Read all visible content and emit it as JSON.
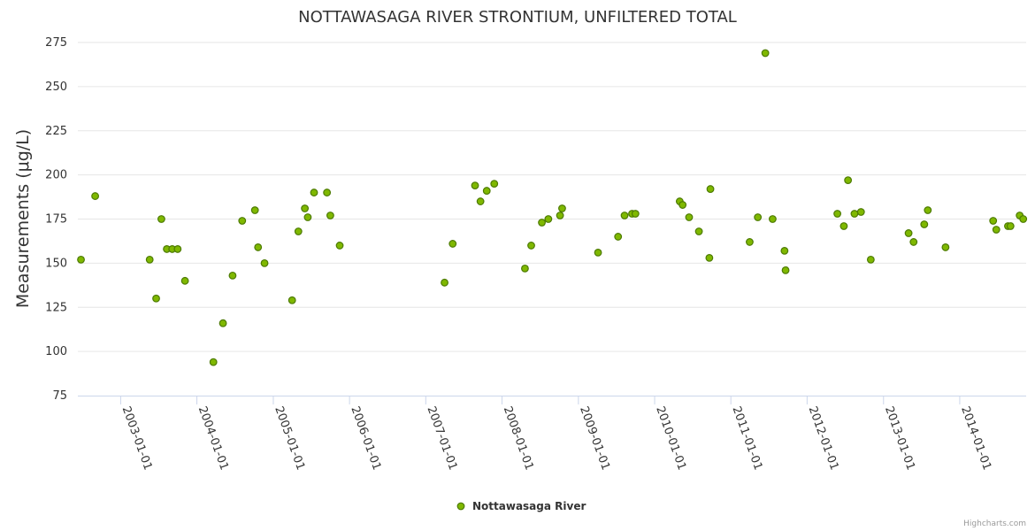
{
  "chart_data": {
    "type": "scatter",
    "title": "NOTTAWASAGA RIVER STRONTIUM, UNFILTERED TOTAL",
    "ylabel": "Measurements (μg/L)",
    "xlabel": "",
    "xlim": [
      "2002-06-10",
      "2014-11-15"
    ],
    "ylim": [
      75,
      275
    ],
    "yticks": [
      75,
      100,
      125,
      150,
      175,
      200,
      225,
      250,
      275
    ],
    "xticks": [
      "2003-01-01",
      "2004-01-01",
      "2005-01-01",
      "2006-01-01",
      "2007-01-01",
      "2008-01-01",
      "2009-01-01",
      "2010-01-01",
      "2011-01-01",
      "2012-01-01",
      "2013-01-01",
      "2014-01-01"
    ],
    "grid": true,
    "legend_position": "bottom",
    "colors": {
      "marker_fill": "#7fb800",
      "marker_stroke": "#4c7a00"
    },
    "series": [
      {
        "name": "Nottawasaga River",
        "points": [
          [
            "2002-06-25",
            152
          ],
          [
            "2002-09-01",
            188
          ],
          [
            "2003-05-20",
            152
          ],
          [
            "2003-06-20",
            130
          ],
          [
            "2003-07-15",
            175
          ],
          [
            "2003-08-10",
            158
          ],
          [
            "2003-09-05",
            158
          ],
          [
            "2003-10-01",
            158
          ],
          [
            "2003-11-05",
            140
          ],
          [
            "2004-03-20",
            94
          ],
          [
            "2004-05-05",
            116
          ],
          [
            "2004-06-20",
            143
          ],
          [
            "2004-08-05",
            174
          ],
          [
            "2004-10-05",
            180
          ],
          [
            "2004-10-20",
            159
          ],
          [
            "2004-11-20",
            150
          ],
          [
            "2005-04-01",
            129
          ],
          [
            "2005-05-01",
            168
          ],
          [
            "2005-06-01",
            181
          ],
          [
            "2005-06-15",
            176
          ],
          [
            "2005-07-15",
            190
          ],
          [
            "2005-09-15",
            190
          ],
          [
            "2005-10-01",
            177
          ],
          [
            "2005-11-15",
            160
          ],
          [
            "2007-04-01",
            139
          ],
          [
            "2007-05-10",
            161
          ],
          [
            "2007-08-25",
            194
          ],
          [
            "2007-09-20",
            185
          ],
          [
            "2007-10-20",
            191
          ],
          [
            "2007-11-25",
            195
          ],
          [
            "2008-04-20",
            147
          ],
          [
            "2008-05-20",
            160
          ],
          [
            "2008-07-10",
            173
          ],
          [
            "2008-08-10",
            175
          ],
          [
            "2008-10-05",
            177
          ],
          [
            "2008-10-15",
            181
          ],
          [
            "2009-04-05",
            156
          ],
          [
            "2009-07-10",
            165
          ],
          [
            "2009-08-10",
            177
          ],
          [
            "2009-09-15",
            178
          ],
          [
            "2009-10-01",
            178
          ],
          [
            "2010-05-01",
            185
          ],
          [
            "2010-05-15",
            183
          ],
          [
            "2010-06-15",
            176
          ],
          [
            "2010-08-01",
            168
          ],
          [
            "2010-09-20",
            153
          ],
          [
            "2010-09-25",
            192
          ],
          [
            "2011-04-01",
            162
          ],
          [
            "2011-05-10",
            176
          ],
          [
            "2011-06-15",
            269
          ],
          [
            "2011-07-20",
            175
          ],
          [
            "2011-09-15",
            157
          ],
          [
            "2011-09-20",
            146
          ],
          [
            "2012-05-25",
            178
          ],
          [
            "2012-06-25",
            171
          ],
          [
            "2012-07-15",
            197
          ],
          [
            "2012-08-15",
            178
          ],
          [
            "2012-09-15",
            179
          ],
          [
            "2012-11-01",
            152
          ],
          [
            "2013-05-01",
            167
          ],
          [
            "2013-05-25",
            162
          ],
          [
            "2013-07-15",
            172
          ],
          [
            "2013-08-01",
            180
          ],
          [
            "2013-10-25",
            159
          ],
          [
            "2014-06-10",
            174
          ],
          [
            "2014-06-25",
            169
          ],
          [
            "2014-08-20",
            171
          ],
          [
            "2014-09-01",
            171
          ],
          [
            "2014-10-15",
            177
          ],
          [
            "2014-11-01",
            175
          ]
        ]
      }
    ]
  },
  "credit": "Highcharts.com"
}
